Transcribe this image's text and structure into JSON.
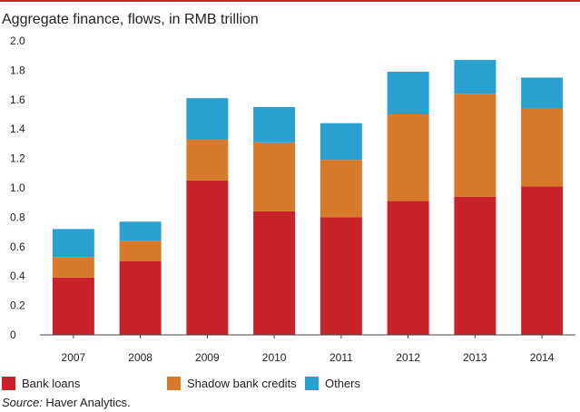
{
  "chart_data": {
    "type": "bar",
    "stacked": true,
    "title": "Aggregate finance, flows, in RMB trillion",
    "xlabel": "",
    "ylabel": "",
    "ylim": [
      0,
      2.0
    ],
    "yticks": [
      "0",
      "0.2",
      "0.4",
      "0.6",
      "0.8",
      "1.0",
      "1.2",
      "1.4",
      "1.6",
      "1.8",
      "2.0"
    ],
    "grid": false,
    "legend_position": "bottom",
    "categories": [
      "2007",
      "2008",
      "2009",
      "2010",
      "2011",
      "2012",
      "2013",
      "2014"
    ],
    "series": [
      {
        "name": "Bank loans",
        "color": "#c8222b",
        "values": [
          0.39,
          0.5,
          1.05,
          0.84,
          0.8,
          0.91,
          0.94,
          1.01
        ]
      },
      {
        "name": "Shadow bank credits",
        "color": "#d87a2b",
        "values": [
          0.14,
          0.14,
          0.28,
          0.47,
          0.39,
          0.59,
          0.7,
          0.53
        ]
      },
      {
        "name": "Others",
        "color": "#2aa0d0",
        "values": [
          0.19,
          0.13,
          0.28,
          0.24,
          0.25,
          0.29,
          0.23,
          0.21
        ]
      }
    ]
  },
  "source": {
    "label": "Source:",
    "text": " Haver Analytics."
  }
}
